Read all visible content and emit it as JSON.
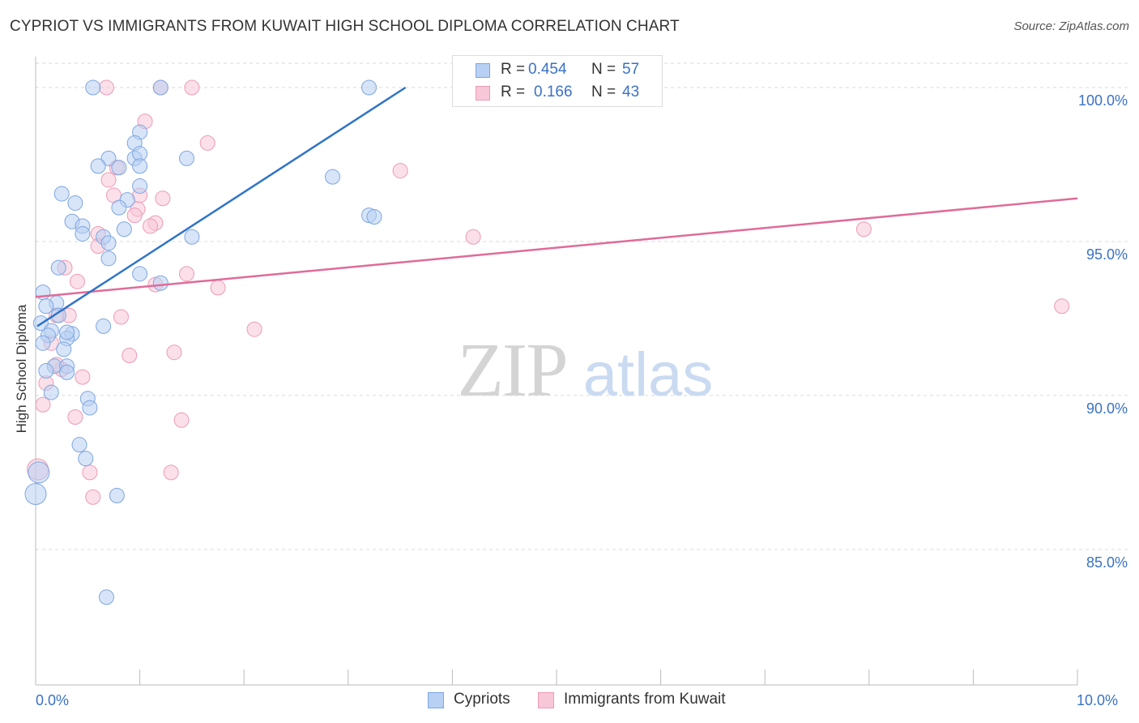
{
  "title": "CYPRIOT VS IMMIGRANTS FROM KUWAIT HIGH SCHOOL DIPLOMA CORRELATION CHART",
  "source": "Source: ZipAtlas.com",
  "watermark": {
    "zip": "ZIP",
    "atlas": "atlas"
  },
  "legend": {
    "rows": [
      {
        "r_label": "R =",
        "r_value": "0.454",
        "n_label": "N =",
        "n_value": "57"
      },
      {
        "r_label": "R =",
        "r_value": "0.166",
        "n_label": "N =",
        "n_value": "43"
      }
    ]
  },
  "colors": {
    "blue_fill": "#b8d0f3",
    "blue_stroke": "#7da6e0",
    "blue_line": "#2f74c8",
    "pink_fill": "#f8c7d7",
    "pink_stroke": "#ee9ab6",
    "pink_line": "#e06b98",
    "tick_label": "#3a72c4",
    "grid": "#d9d9d9"
  },
  "chart_data": {
    "type": "scatter",
    "title": "CYPRIOT VS IMMIGRANTS FROM KUWAIT HIGH SCHOOL DIPLOMA CORRELATION CHART",
    "xlabel": "",
    "ylabel": "High School Diploma",
    "xlim": [
      0,
      10
    ],
    "ylim": [
      80.6,
      101.0
    ],
    "x_tick_labels": [
      {
        "value": 0,
        "label": "0.0%"
      },
      {
        "value": 10,
        "label": "10.0%"
      }
    ],
    "y_ticks": [
      {
        "value": 100,
        "label": "100.0%"
      },
      {
        "value": 95,
        "label": "95.0%"
      },
      {
        "value": 90,
        "label": "90.0%"
      },
      {
        "value": 85,
        "label": "85.0%"
      }
    ],
    "series": [
      {
        "name": "Cypriots",
        "r": 0.454,
        "n": 57,
        "trend": {
          "x": [
            0.0,
            3.55
          ],
          "y": [
            92.25,
            100.0
          ]
        },
        "points": [
          [
            0.55,
            100.0
          ],
          [
            1.2,
            100.0
          ],
          [
            3.2,
            100.0
          ],
          [
            1.0,
            98.55
          ],
          [
            0.95,
            98.2
          ],
          [
            0.7,
            97.7
          ],
          [
            0.95,
            97.7
          ],
          [
            1.45,
            97.7
          ],
          [
            1.0,
            97.85
          ],
          [
            0.6,
            97.45
          ],
          [
            0.8,
            97.4
          ],
          [
            1.0,
            97.45
          ],
          [
            2.85,
            97.1
          ],
          [
            0.25,
            96.55
          ],
          [
            0.38,
            96.25
          ],
          [
            0.88,
            96.35
          ],
          [
            1.0,
            96.8
          ],
          [
            0.8,
            96.1
          ],
          [
            3.2,
            95.85
          ],
          [
            3.25,
            95.8
          ],
          [
            0.35,
            95.65
          ],
          [
            0.45,
            95.5
          ],
          [
            0.85,
            95.4
          ],
          [
            0.45,
            95.25
          ],
          [
            0.65,
            95.15
          ],
          [
            1.5,
            95.15
          ],
          [
            0.7,
            94.95
          ],
          [
            0.7,
            94.45
          ],
          [
            0.22,
            94.15
          ],
          [
            1.0,
            93.95
          ],
          [
            1.2,
            93.65
          ],
          [
            0.07,
            93.35
          ],
          [
            0.2,
            93.0
          ],
          [
            0.1,
            92.9
          ],
          [
            0.22,
            92.6
          ],
          [
            0.65,
            92.25
          ],
          [
            0.05,
            92.35
          ],
          [
            0.15,
            92.1
          ],
          [
            0.35,
            92.0
          ],
          [
            0.12,
            91.95
          ],
          [
            0.3,
            91.85
          ],
          [
            0.07,
            91.7
          ],
          [
            0.27,
            91.5
          ],
          [
            0.18,
            90.95
          ],
          [
            0.3,
            90.95
          ],
          [
            0.1,
            90.8
          ],
          [
            0.3,
            90.75
          ],
          [
            0.15,
            90.1
          ],
          [
            0.5,
            89.9
          ],
          [
            0.52,
            89.6
          ],
          [
            0.42,
            88.4
          ],
          [
            0.48,
            87.95
          ],
          [
            0.03,
            87.5
          ],
          [
            0.0,
            86.8
          ],
          [
            0.78,
            86.75
          ],
          [
            0.68,
            83.45
          ],
          [
            0.3,
            92.05
          ]
        ]
      },
      {
        "name": "Immigrants from Kuwait",
        "r": 0.166,
        "n": 43,
        "trend": {
          "x": [
            0.0,
            10.0
          ],
          "y": [
            93.2,
            96.4
          ]
        },
        "points": [
          [
            0.68,
            100.0
          ],
          [
            1.2,
            100.0
          ],
          [
            1.5,
            100.0
          ],
          [
            1.05,
            98.9
          ],
          [
            1.65,
            98.2
          ],
          [
            0.78,
            97.4
          ],
          [
            3.5,
            97.3
          ],
          [
            0.7,
            97.0
          ],
          [
            0.75,
            96.5
          ],
          [
            1.0,
            96.5
          ],
          [
            1.22,
            96.4
          ],
          [
            0.98,
            96.05
          ],
          [
            0.95,
            95.85
          ],
          [
            1.15,
            95.6
          ],
          [
            1.1,
            95.5
          ],
          [
            0.6,
            95.25
          ],
          [
            4.2,
            95.15
          ],
          [
            0.6,
            94.85
          ],
          [
            7.95,
            95.4
          ],
          [
            0.28,
            94.15
          ],
          [
            1.45,
            93.95
          ],
          [
            0.4,
            93.7
          ],
          [
            1.15,
            93.6
          ],
          [
            1.75,
            93.5
          ],
          [
            9.85,
            92.9
          ],
          [
            0.32,
            92.6
          ],
          [
            0.82,
            92.55
          ],
          [
            0.2,
            92.6
          ],
          [
            2.1,
            92.15
          ],
          [
            0.15,
            91.7
          ],
          [
            1.33,
            91.4
          ],
          [
            0.9,
            91.3
          ],
          [
            0.25,
            90.85
          ],
          [
            0.45,
            90.6
          ],
          [
            0.1,
            90.4
          ],
          [
            0.07,
            89.7
          ],
          [
            0.38,
            89.3
          ],
          [
            1.4,
            89.2
          ],
          [
            0.02,
            87.6
          ],
          [
            0.52,
            87.5
          ],
          [
            1.3,
            87.5
          ],
          [
            0.55,
            86.7
          ],
          [
            0.2,
            91.0
          ]
        ]
      }
    ]
  },
  "bottom_legend": [
    "Cypriots",
    "Immigrants from Kuwait"
  ]
}
